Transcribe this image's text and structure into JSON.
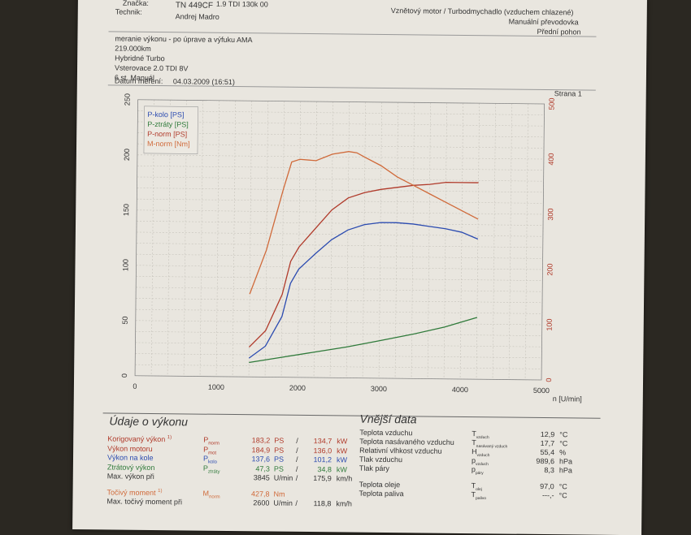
{
  "header": {
    "brand_label": "Značka:",
    "model_fragment": "1.9 TDI 130k 00",
    "plate": "TN 449CF",
    "technician_label": "Technik:",
    "technician": "Andrej Madro",
    "engine": "Vznětový motor / Turbodmychadlo (vzduchem chlazené)",
    "gearbox": "Manuální převodovka",
    "drive": "Přední pohon",
    "notes": [
      "meranie výkonu - po úprave a výfuku AMA",
      "219.000km",
      "Hybridné Turbo",
      "Vsterovace 2.0 TDI 8V",
      "6 st. Manuál"
    ],
    "date_label": "Datum měření:",
    "date": "04.03.2009 (16:51)",
    "page": "Strana 1"
  },
  "chart_data": {
    "type": "line",
    "xlabel": "n [U/min]",
    "xlim": [
      0,
      5000
    ],
    "ylim_left": [
      0,
      250
    ],
    "ylim_right": [
      0,
      500
    ],
    "xticks": [
      "0",
      "1000",
      "2000",
      "3000",
      "4000",
      "5000"
    ],
    "yticks_left": [
      "0",
      "50",
      "100",
      "150",
      "200",
      "250"
    ],
    "yticks_right": [
      "0",
      "100",
      "200",
      "300",
      "400",
      "500"
    ],
    "grid": true,
    "legend_position": "top-left",
    "series": [
      {
        "name": "P-kolo [PS]",
        "color": "#2b4bb0",
        "axis": "left",
        "x": [
          1400,
          1600,
          1800,
          1900,
          2000,
          2200,
          2400,
          2600,
          2800,
          3000,
          3200,
          3400,
          3600,
          3800,
          4000,
          4200
        ],
        "y": [
          17,
          28,
          55,
          85,
          98,
          112,
          125,
          134,
          139,
          141,
          141,
          140,
          138,
          136,
          133,
          127
        ]
      },
      {
        "name": "P-ztráty [PS]",
        "color": "#2f7a3a",
        "axis": "left",
        "x": [
          1400,
          1800,
          2200,
          2600,
          3000,
          3400,
          3800,
          4200
        ],
        "y": [
          13,
          18,
          23,
          28,
          34,
          40,
          47,
          56
        ]
      },
      {
        "name": "P-norm [PS]",
        "color": "#b03a2a",
        "axis": "left",
        "x": [
          1400,
          1600,
          1800,
          1900,
          2000,
          2200,
          2400,
          2600,
          2800,
          3000,
          3200,
          3400,
          3600,
          3800,
          4000,
          4200
        ],
        "y": [
          27,
          42,
          75,
          105,
          118,
          135,
          152,
          163,
          168,
          171,
          173,
          175,
          176,
          178,
          178,
          178
        ]
      },
      {
        "name": "M-norm [Nm]",
        "color": "#d06a3a",
        "axis": "right",
        "x": [
          1400,
          1600,
          1800,
          1900,
          2000,
          2200,
          2400,
          2600,
          2700,
          2800,
          3000,
          3200,
          3400,
          3600,
          3800,
          4000,
          4200
        ],
        "y": [
          150,
          230,
          340,
          390,
          395,
          393,
          405,
          410,
          408,
          400,
          385,
          365,
          350,
          335,
          320,
          305,
          290
        ]
      }
    ]
  },
  "vykon": {
    "title": "Údaje o výkonu",
    "rows": [
      {
        "label": "Korigovaný výkon",
        "sup": "1)",
        "sym": "P",
        "sub": "norm",
        "v1": "183,2",
        "u1": "PS",
        "v2": "134,7",
        "u2": "kW",
        "color": "#b03a2a"
      },
      {
        "label": "Výkon motoru",
        "sup": "",
        "sym": "P",
        "sub": "mot",
        "v1": "184,9",
        "u1": "PS",
        "v2": "136,0",
        "u2": "kW",
        "color": "#b03a2a"
      },
      {
        "label": "Výkon na kole",
        "sup": "",
        "sym": "P",
        "sub": "kolo",
        "v1": "137,6",
        "u1": "PS",
        "v2": "101,2",
        "u2": "kW",
        "color": "#2b4bb0"
      },
      {
        "label": "Ztrátový výkon",
        "sup": "",
        "sym": "P",
        "sub": "ztráty",
        "v1": "47,3",
        "u1": "PS",
        "v2": "34,8",
        "u2": "kW",
        "color": "#2f7a3a"
      },
      {
        "label": "Max. výkon při",
        "sup": "",
        "sym": "",
        "sub": "",
        "v1": "3845",
        "u1": "U/min",
        "v2": "175,9",
        "u2": "km/h",
        "color": "#333"
      },
      {
        "label": "Točivý moment",
        "sup": "1)",
        "sym": "M",
        "sub": "norm",
        "v1": "427,8",
        "u1": "Nm",
        "v2": "",
        "u2": "",
        "color": "#d06a3a"
      },
      {
        "label": "Max. točivý moment při",
        "sup": "",
        "sym": "",
        "sub": "",
        "v1": "2600",
        "u1": "U/min",
        "v2": "118,8",
        "u2": "km/h",
        "color": "#333"
      }
    ]
  },
  "vnejsi": {
    "title": "Vnější data",
    "rows": [
      {
        "label": "Teplota vzduchu",
        "sym": "T",
        "sub": "vzduch",
        "v": "12,9",
        "u": "°C"
      },
      {
        "label": "Teplota nasávaného vzduchu",
        "sym": "T",
        "sub": "nasávaný vzduch",
        "v": "17,7",
        "u": "°C"
      },
      {
        "label": "Relativní vlhkost vzduchu",
        "sym": "H",
        "sub": "vzduch",
        "v": "55,4",
        "u": "%"
      },
      {
        "label": "Tlak vzduchu",
        "sym": "p",
        "sub": "vzduch",
        "v": "989,6",
        "u": "hPa"
      },
      {
        "label": "Tlak páry",
        "sym": "p",
        "sub": "páry",
        "v": "8,3",
        "u": "hPa"
      },
      {
        "label": "Teplota oleje",
        "sym": "T",
        "sub": "olej",
        "v": "97,0",
        "u": "°C"
      },
      {
        "label": "Teplota paliva",
        "sym": "T",
        "sub": "palivo",
        "v": "---,-",
        "u": "°C"
      }
    ]
  }
}
